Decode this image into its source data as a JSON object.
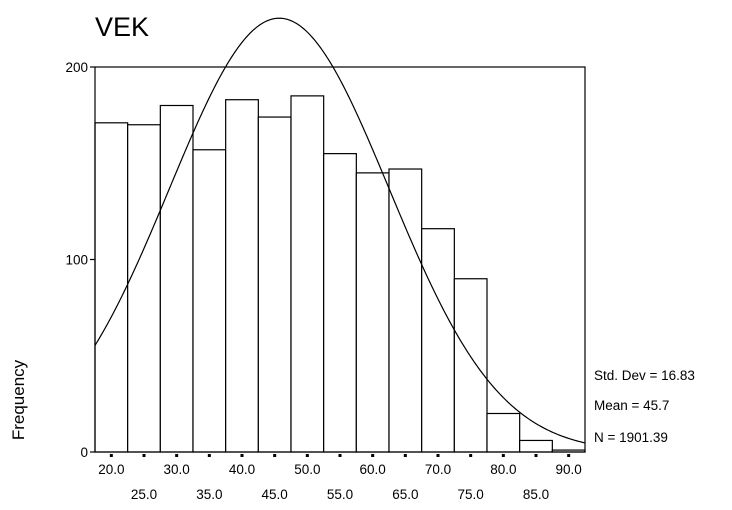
{
  "chart_data": {
    "type": "bar",
    "title": "VEK",
    "xlabel": "",
    "ylabel": "Frequency",
    "x_tick_labels_upper": [
      "20.0",
      "30.0",
      "40.0",
      "50.0",
      "60.0",
      "70.0",
      "80.0",
      "90.0"
    ],
    "x_tick_labels_lower": [
      "25.0",
      "35.0",
      "45.0",
      "55.0",
      "65.0",
      "75.0",
      "85.0"
    ],
    "y_ticks": [
      "0",
      "100",
      "200"
    ],
    "ylim": [
      0,
      200
    ],
    "xlim": [
      17.5,
      92.5
    ],
    "bin_width": 5,
    "categories": [
      "20.0",
      "25.0",
      "30.0",
      "35.0",
      "40.0",
      "45.0",
      "50.0",
      "55.0",
      "60.0",
      "65.0",
      "70.0",
      "75.0",
      "80.0",
      "85.0",
      "90.0"
    ],
    "values": [
      171,
      170,
      180,
      157,
      183,
      174,
      185,
      155,
      145,
      147,
      116,
      90,
      20,
      6,
      1
    ],
    "normal_curve": {
      "mean": 45.7,
      "std_dev": 16.83,
      "n": 1901.39
    },
    "stats": {
      "std_dev_label": "Std. Dev = 16.83",
      "mean_label": "Mean = 45.7",
      "n_label": "N = 1901.39"
    },
    "grid": false,
    "legend": "none"
  }
}
